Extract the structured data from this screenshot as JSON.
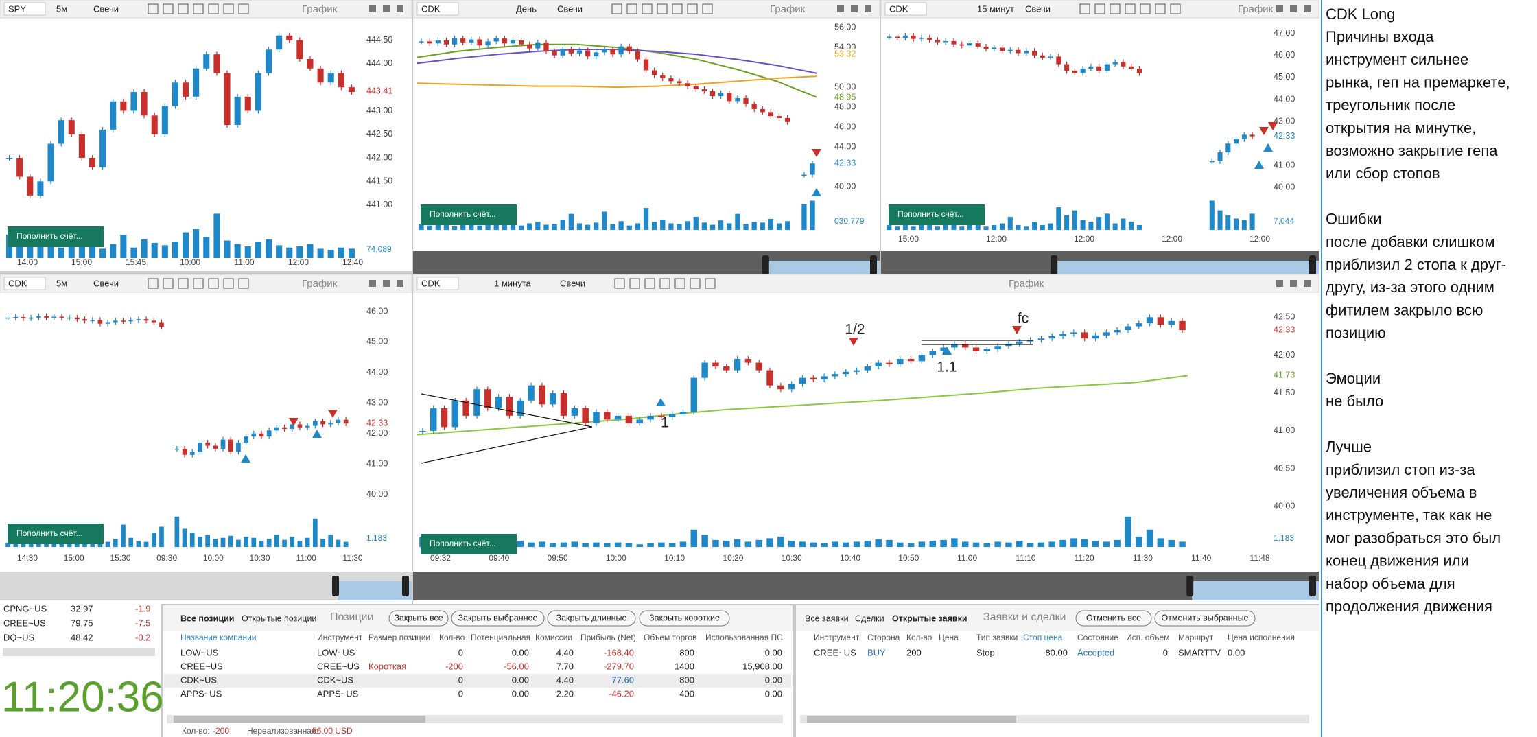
{
  "chart_style": {
    "up_color": "#1f88c8",
    "down_color": "#c9302c",
    "volume_color": "#1f88c8",
    "button_color": "#16785c"
  },
  "panels": [
    {
      "symbol": "SPY",
      "interval": "5м",
      "chart_type": "Свечи",
      "title": "График",
      "button": "Пополнить счёт...",
      "ylim": [
        440.98,
        445.15
      ],
      "yticks": [
        {
          "value": 444.5,
          "label": "444.50"
        },
        {
          "value": 444,
          "label": "444.00"
        },
        {
          "value": 443,
          "label": "443.00"
        },
        {
          "value": 442.5,
          "label": "442.50"
        },
        {
          "value": 442,
          "label": "442.00"
        },
        {
          "value": 441.5,
          "label": "441.50"
        },
        {
          "value": 441,
          "label": "441.00"
        }
      ],
      "prices": [
        442.0,
        441.6,
        441.2,
        441.5,
        442.3,
        442.8,
        442.5,
        442.0,
        441.8,
        442.6,
        443.2,
        443.0,
        443.4,
        442.9,
        442.5,
        443.1,
        443.6,
        443.3,
        443.9,
        444.2,
        443.8,
        442.7,
        443.3,
        443.0,
        443.8,
        444.3,
        444.6,
        444.5,
        444.1,
        443.9,
        443.6,
        443.8,
        443.5,
        443.4
      ],
      "volumes": [
        20,
        18,
        12,
        10,
        14,
        9,
        11,
        15,
        10,
        8,
        12,
        20,
        9,
        16,
        13,
        11,
        14,
        22,
        25,
        18,
        38,
        15,
        12,
        10,
        14,
        16,
        11,
        9,
        10,
        12,
        8,
        7,
        9,
        8
      ],
      "volume_label": "74,089",
      "price_labels": [
        {
          "value": 443.41,
          "label": "443.41",
          "color": "#c9302c"
        }
      ],
      "xticks": [
        "14:00",
        "15:00",
        "15:45",
        "10:00",
        "11:00",
        "12:00",
        "12:40"
      ]
    },
    {
      "symbol": "CDK",
      "interval": "День",
      "chart_type": "Свечи",
      "title": "График",
      "button": "Пополнить счёт...",
      "ylim": [
        39.1,
        56.7
      ],
      "yticks": [
        {
          "value": 56,
          "label": "56.00"
        },
        {
          "value": 54,
          "label": "54.00"
        },
        {
          "value": 50,
          "label": "50.00"
        },
        {
          "value": 48,
          "label": "48.00"
        },
        {
          "value": 46,
          "label": "46.00"
        },
        {
          "value": 44,
          "label": "44.00"
        },
        {
          "value": 40,
          "label": "40.00"
        }
      ],
      "prices": [
        54.6,
        54.4,
        54.7,
        54.3,
        54.9,
        54.5,
        54.8,
        54.2,
        54.6,
        54.9,
        54.4,
        54.7,
        54.3,
        53.9,
        54.5,
        53.6,
        53.2,
        53.8,
        53.4,
        53.7,
        53.1,
        53.5,
        53.8,
        53.3,
        54.1,
        53.6,
        52.8,
        51.7,
        51.2,
        50.9,
        50.6,
        50.4,
        50.1,
        49.8,
        49.6,
        49.1,
        49.4,
        48.6,
        48.9,
        48.3,
        47.8,
        47.5,
        47.1,
        46.9,
        46.5,
        null,
        41.2,
        42.33
      ],
      "volumes": [
        8,
        6,
        10,
        7,
        5,
        9,
        12,
        6,
        8,
        7,
        10,
        15,
        6,
        9,
        11,
        7,
        8,
        14,
        22,
        9,
        7,
        10,
        25,
        8,
        12,
        6,
        9,
        30,
        11,
        14,
        9,
        8,
        12,
        18,
        10,
        7,
        13,
        9,
        22,
        8,
        11,
        10,
        15,
        9,
        12,
        null,
        35,
        40
      ],
      "volume_label": "030,779",
      "moving_averages": [
        {
          "color": "#6aa121",
          "values": [
            53.0,
            53.6,
            54.0,
            54.3,
            54.3,
            54.0,
            53.5,
            52.8,
            51.8,
            50.6,
            49.0
          ]
        },
        {
          "color": "#6a4fc4",
          "values": [
            52.4,
            52.9,
            53.3,
            53.6,
            53.8,
            53.8,
            53.6,
            53.3,
            52.8,
            52.2,
            51.4
          ]
        },
        {
          "color": "#f0a020",
          "values": [
            50.4,
            50.3,
            50.2,
            50.1,
            50.1,
            50.0,
            50.1,
            50.3,
            50.6,
            50.9,
            51.1
          ]
        }
      ],
      "price_labels": [
        {
          "value": 53.32,
          "label": "53.32",
          "color": "#f0a020"
        },
        {
          "value": 48.95,
          "label": "48.95",
          "color": "#6aa121"
        },
        {
          "value": 42.33,
          "label": "42.33",
          "color": "#1f88c8"
        }
      ]
    },
    {
      "symbol": "CDK",
      "interval": "15 минут",
      "chart_type": "Свечи",
      "title": "График",
      "button": "Пополнить счёт...",
      "ylim": [
        39.64,
        47.58
      ],
      "yticks": [
        {
          "value": 47,
          "label": "47.00"
        },
        {
          "value": 46,
          "label": "46.00"
        },
        {
          "value": 45,
          "label": "45.00"
        },
        {
          "value": 44,
          "label": "44.00"
        },
        {
          "value": 43,
          "label": "43.00"
        },
        {
          "value": 41,
          "label": "41.00"
        },
        {
          "value": 40,
          "label": "40.00"
        }
      ],
      "prices": [
        46.85,
        46.8,
        46.9,
        46.75,
        46.8,
        46.7,
        46.6,
        46.65,
        46.5,
        46.45,
        46.55,
        46.4,
        46.3,
        46.35,
        46.2,
        46.25,
        46.1,
        46.2,
        46.0,
        45.9,
        45.95,
        45.6,
        45.3,
        45.2,
        45.4,
        45.5,
        45.3,
        45.6,
        45.7,
        45.5,
        45.4,
        45.2,
        null,
        null,
        null,
        null,
        null,
        null,
        null,
        null,
        41.2,
        41.6,
        42.0,
        42.2,
        42.4,
        42.33
      ],
      "volumes": [
        3,
        2,
        4,
        2,
        3,
        5,
        2,
        3,
        4,
        2,
        3,
        6,
        2,
        3,
        4,
        8,
        3,
        2,
        5,
        3,
        4,
        14,
        9,
        12,
        6,
        5,
        8,
        10,
        4,
        7,
        5,
        3,
        null,
        null,
        null,
        null,
        null,
        null,
        null,
        null,
        18,
        12,
        9,
        7,
        6,
        10
      ],
      "volume_label": "7,044",
      "price_labels": [
        {
          "value": 42.33,
          "label": "42.33",
          "color": "#1f88c8"
        }
      ],
      "xticks": [
        "15:00",
        "12:00",
        "12:00",
        "12:00",
        "12:00"
      ]
    },
    {
      "symbol": "CDK",
      "interval": "5м",
      "chart_type": "Свечи",
      "title": "График",
      "button": "Пополнить счёт...",
      "ylim": [
        39.45,
        46.36
      ],
      "yticks": [
        {
          "value": 46,
          "label": "46.00"
        },
        {
          "value": 45,
          "label": "45.00"
        },
        {
          "value": 44,
          "label": "44.00"
        },
        {
          "value": 43,
          "label": "43.00"
        },
        {
          "value": 42,
          "label": "42.00"
        },
        {
          "value": 41,
          "label": "41.00"
        },
        {
          "value": 40,
          "label": "40.00"
        }
      ],
      "prices": [
        45.8,
        45.82,
        45.78,
        45.8,
        45.85,
        45.8,
        45.83,
        45.79,
        45.8,
        45.75,
        45.7,
        45.72,
        45.6,
        45.65,
        45.7,
        45.68,
        45.72,
        45.75,
        45.7,
        45.65,
        45.5,
        null,
        41.5,
        41.3,
        41.4,
        41.7,
        41.6,
        41.5,
        41.8,
        41.4,
        41.7,
        41.9,
        42.0,
        41.9,
        42.1,
        42.2,
        42.15,
        42.3,
        42.2,
        42.25,
        42.4,
        42.3,
        42.35,
        42.45,
        42.33
      ],
      "volumes": [
        4,
        6,
        3,
        5,
        8,
        4,
        6,
        12,
        5,
        4,
        7,
        10,
        6,
        5,
        8,
        22,
        9,
        6,
        5,
        14,
        20,
        null,
        30,
        18,
        14,
        10,
        12,
        8,
        9,
        11,
        7,
        10,
        9,
        6,
        8,
        12,
        7,
        10,
        6,
        9,
        28,
        8,
        12,
        7,
        5
      ],
      "volume_label": "1,183",
      "price_labels": [
        {
          "value": 42.33,
          "label": "42.33",
          "color": "#c9302c"
        }
      ],
      "xticks": [
        "14:30",
        "15:00",
        "15:30",
        "09:30",
        "10:00",
        "10:30",
        "11:00",
        "11:30"
      ]
    },
    {
      "symbol": "CDK",
      "interval": "1 минута",
      "chart_type": "Свечи",
      "title": "График",
      "button": "Пополнить счёт...",
      "ylim": [
        39.94,
        42.72
      ],
      "yticks": [
        {
          "value": 42.5,
          "label": "42.50"
        },
        {
          "value": 42,
          "label": "42.00"
        },
        {
          "value": 41.5,
          "label": "41.50"
        },
        {
          "value": 41,
          "label": "41.00"
        },
        {
          "value": 40.5,
          "label": "40.50"
        },
        {
          "value": 40,
          "label": "40.00"
        }
      ],
      "prices": [
        41.0,
        41.3,
        41.05,
        41.4,
        41.2,
        41.55,
        41.3,
        41.45,
        41.2,
        41.4,
        41.6,
        41.35,
        41.5,
        41.2,
        41.3,
        41.1,
        41.25,
        41.15,
        41.2,
        41.1,
        41.15,
        41.2,
        41.18,
        41.22,
        41.25,
        41.7,
        41.9,
        41.85,
        41.8,
        41.95,
        41.9,
        41.8,
        41.6,
        41.55,
        41.62,
        41.7,
        41.68,
        41.72,
        41.75,
        41.78,
        41.8,
        41.85,
        41.9,
        41.88,
        41.95,
        41.92,
        42.0,
        42.05,
        42.1,
        42.15,
        42.1,
        42.05,
        42.08,
        42.12,
        42.15,
        42.18,
        42.2,
        42.22,
        42.25,
        42.28,
        42.3,
        42.22,
        42.26,
        42.3,
        42.33,
        42.38,
        42.42,
        42.5,
        42.4,
        42.45,
        42.33
      ],
      "volumes": [
        12,
        8,
        10,
        6,
        9,
        7,
        8,
        5,
        6,
        7,
        5,
        6,
        4,
        5,
        6,
        4,
        5,
        4,
        5,
        4,
        3,
        4,
        5,
        4,
        6,
        20,
        14,
        8,
        7,
        9,
        6,
        8,
        10,
        12,
        7,
        6,
        5,
        4,
        6,
        5,
        6,
        7,
        9,
        8,
        5,
        4,
        6,
        7,
        8,
        10,
        6,
        5,
        4,
        6,
        5,
        7,
        4,
        5,
        6,
        8,
        10,
        9,
        7,
        6,
        8,
        35,
        12,
        20,
        10,
        8,
        6
      ],
      "volume_label": "1,183",
      "moving_averages": [
        {
          "color": "#8cc63f",
          "values": [
            40.95,
            41.0,
            41.05,
            41.1,
            41.15,
            41.22,
            41.28,
            41.32,
            41.36,
            41.4,
            41.45,
            41.5,
            41.56,
            41.6,
            41.64,
            41.73
          ]
        }
      ],
      "price_labels": [
        {
          "value": 42.33,
          "label": "42.33",
          "color": "#c9302c"
        },
        {
          "value": 41.73,
          "label": "41.73",
          "color": "#6aa121"
        }
      ],
      "xticks": [
        "09:32",
        "09:40",
        "09:50",
        "10:00",
        "10:10",
        "10:20",
        "10:30",
        "10:40",
        "10:50",
        "11:00",
        "11:10",
        "11:20",
        "11:30",
        "11:40",
        "11:48"
      ],
      "annotations": [
        "1",
        "1/2",
        "1.1",
        "fc"
      ]
    }
  ],
  "watchlist": [
    [
      "CPNG~US",
      "32.97",
      "-1.9"
    ],
    [
      "CREE~US",
      "79.75",
      "-7.5"
    ],
    [
      "DQ~US",
      "48.42",
      "-0.2"
    ]
  ],
  "clock": "11:20:36",
  "positions": {
    "tabs": [
      "Все позиции",
      "Открытые позиции"
    ],
    "title": "Позиции",
    "buttons": [
      "Закрыть все",
      "Закрыть выбранное",
      "Закрыть длинные",
      "Закрыть короткие"
    ],
    "columns": [
      "Название компании",
      "Инструмент",
      "Размер позиции",
      "Кол-во",
      "Потенциальная",
      "Комиссии",
      "Прибыль (Net)",
      "Объем торгов",
      "Использованная ПС"
    ],
    "rows": [
      [
        "LOW~US",
        "LOW~US",
        null,
        "0",
        "0.00",
        "4.40",
        "-168.40",
        "800",
        "0.00"
      ],
      [
        "CREE~US",
        "CREE~US",
        "Короткая",
        "-200",
        "-56.00",
        "7.70",
        "-279.70",
        "1400",
        "15,908.00"
      ],
      [
        "CDK~US",
        "CDK~US",
        null,
        "0",
        "0.00",
        "4.40",
        "77.60",
        "800",
        "0.00"
      ],
      [
        "APPS~US",
        "APPS~US",
        null,
        "0",
        "0.00",
        "2.20",
        "-46.20",
        "400",
        "0.00"
      ]
    ],
    "footer": [
      "Кол-во:",
      "-200",
      "Нереализованная:",
      "-56.00 USD"
    ]
  },
  "orders": {
    "tabs": [
      "Все заявки",
      "Сделки",
      "Открытые заявки"
    ],
    "title": "Заявки и сделки",
    "buttons": [
      "Отменить все",
      "Отменить выбранные"
    ],
    "columns": [
      "Инструмент",
      "Сторона",
      "Кол-во",
      "Цена",
      "Тип заявки",
      "Стоп цена",
      "Состояние",
      "Исп. объем",
      "Маршрут",
      "Цена исполнения"
    ],
    "rows": [
      [
        "CREE~US",
        "BUY",
        "200",
        null,
        "Stop",
        "80.00",
        "Accepted",
        "0",
        "SMARTTV",
        "0.00"
      ]
    ]
  },
  "notes": [
    [
      "CDK Long",
      "Причины входа",
      "инструмент сильнее",
      "рынка, геп на премаркете,",
      "треугольник после",
      "открытия на минутке,",
      "возможно закрытие гепа",
      "или сбор стопов"
    ],
    [
      "Ошибки",
      "после добавки слишком",
      "приблизил 2 стопа к друг-",
      "другу, из-за этого одним",
      "фитилем закрыло всю",
      "позицию"
    ],
    [
      "Эмоции",
      "не было"
    ],
    [
      "Лучше",
      "приблизил стоп из-за",
      "увеличения объема в",
      "инструменте, так как не",
      "мог разобраться это был",
      "конец движения или",
      "набор объема для",
      "продолжения движения"
    ]
  ]
}
